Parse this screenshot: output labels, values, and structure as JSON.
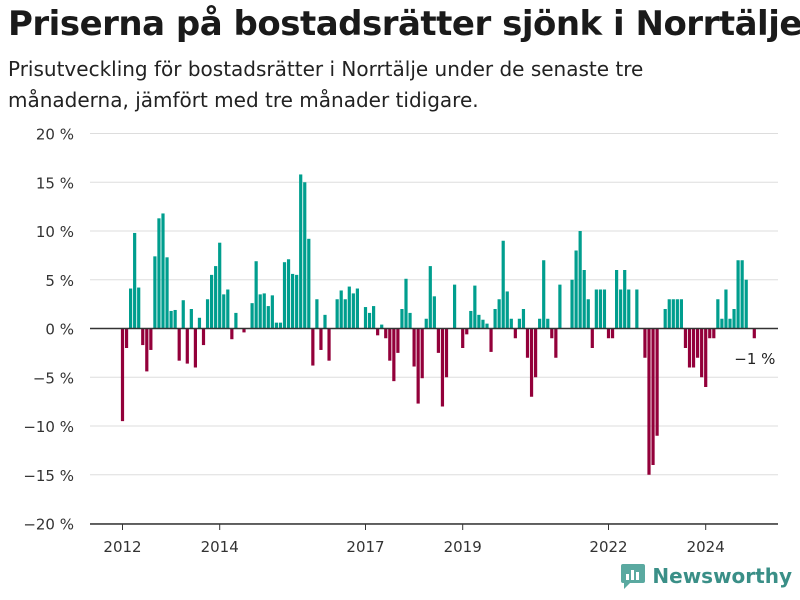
{
  "title": "Priserna på bostadsrätter sjönk i Norrtälje",
  "subtitle": "Prisutveckling för bostadsrätter i Norrtälje under de senaste tre månaderna, jämfört med tre månader tidigare.",
  "brand": "Newsworthy",
  "colors": {
    "positive": "#009e8e",
    "negative": "#93003a",
    "grid": "#dddddd",
    "axis": "#333333",
    "text": "#333333"
  },
  "chart_data": {
    "type": "bar",
    "x_unit": "month",
    "start_month": "2012-01",
    "yticks": [
      "20 %",
      "15 %",
      "10 %",
      "5 %",
      "0 %",
      "−5 %",
      "−10 %",
      "−15 %",
      "−20 %"
    ],
    "ylim": [
      -20,
      20
    ],
    "xticks": [
      {
        "label": "2012",
        "month": "2012-01"
      },
      {
        "label": "2014",
        "month": "2014-01"
      },
      {
        "label": "2017",
        "month": "2017-01"
      },
      {
        "label": "2019",
        "month": "2019-01"
      },
      {
        "label": "2022",
        "month": "2022-01"
      },
      {
        "label": "2024",
        "month": "2024-01"
      }
    ],
    "values": [
      -9.5,
      -2.0,
      4.1,
      9.8,
      4.2,
      -1.7,
      -4.4,
      -2.2,
      7.4,
      11.3,
      11.8,
      7.3,
      1.8,
      1.9,
      -3.3,
      2.9,
      -3.6,
      2.0,
      -4.0,
      1.1,
      -1.7,
      3.0,
      5.5,
      6.4,
      8.8,
      3.5,
      4.0,
      -1.1,
      1.6,
      0.0,
      -0.4,
      0.0,
      2.6,
      6.9,
      3.5,
      3.6,
      2.3,
      3.4,
      0.6,
      0.6,
      6.8,
      7.1,
      5.6,
      5.5,
      15.8,
      15.0,
      9.2,
      -3.8,
      3.0,
      -2.2,
      1.4,
      -3.3,
      0.0,
      3.0,
      3.9,
      3.0,
      4.3,
      3.6,
      4.1,
      0.0,
      2.2,
      1.6,
      2.3,
      -0.7,
      0.4,
      -1.0,
      -3.3,
      -5.4,
      -2.5,
      2.0,
      5.1,
      1.6,
      -3.9,
      -7.7,
      -5.1,
      1.0,
      6.4,
      3.3,
      -2.5,
      -8.0,
      -5.0,
      0.0,
      4.5,
      0.0,
      -2.0,
      -0.6,
      1.8,
      4.4,
      1.4,
      0.9,
      0.5,
      -2.4,
      2.0,
      3.0,
      9.0,
      3.8,
      1.0,
      -1.0,
      1.0,
      2.0,
      -3.0,
      -7.0,
      -5.0,
      1.0,
      7.0,
      1.0,
      -1.0,
      -3.0,
      4.5,
      0.0,
      0.0,
      5.0,
      8.0,
      10.0,
      6.0,
      3.0,
      -2.0,
      4.0,
      4.0,
      4.0,
      -1.0,
      -1.0,
      6.0,
      4.0,
      6.0,
      4.0,
      0.0,
      4.0,
      0.0,
      -3.0,
      -15.0,
      -14.0,
      -11.0,
      0.0,
      2.0,
      3.0,
      3.0,
      3.0,
      3.0,
      -2.0,
      -4.0,
      -4.0,
      -3.0,
      -5.0,
      -6.0,
      -1.0,
      -1.0,
      3.0,
      1.0,
      4.0,
      1.0,
      2.0,
      7.0,
      7.0,
      5.0,
      0.0,
      -1.0
    ],
    "annotations": [
      {
        "text": "−1 %",
        "month": "2025-01"
      }
    ]
  }
}
